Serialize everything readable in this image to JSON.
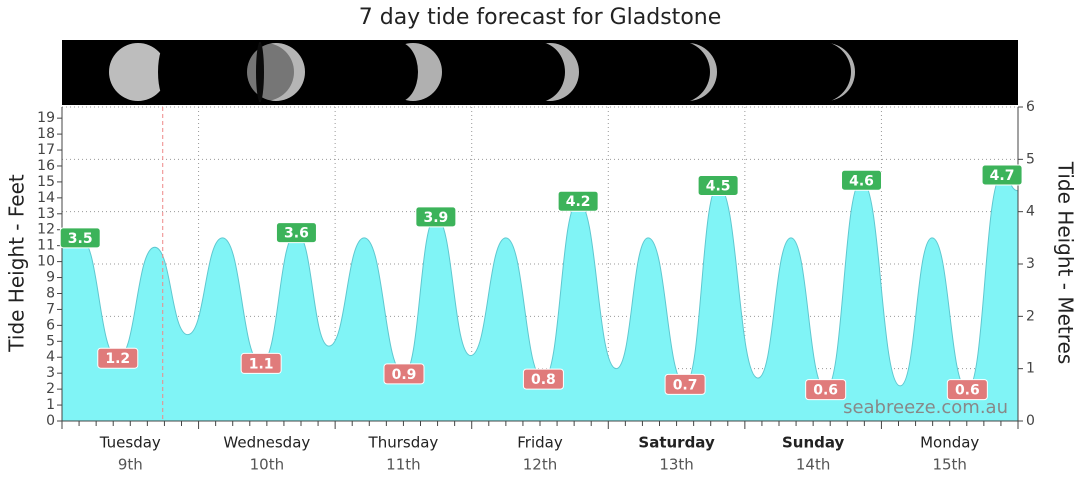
{
  "chart_data": {
    "type": "area",
    "title": "7 day tide forecast for Gladstone",
    "y_label": "Tide Height - Feet",
    "y2_label": "Tide Height - Metres",
    "watermark": "seabreeze.com.au",
    "xlim": [
      0,
      168
    ],
    "xticks": [
      0,
      24,
      48,
      72,
      96,
      120,
      144,
      168
    ],
    "xminorticks": [
      3,
      6,
      9,
      12,
      15,
      18,
      21,
      27,
      30,
      33,
      36,
      39,
      42,
      45,
      51,
      54,
      57,
      60,
      63,
      66,
      69,
      75,
      78,
      81,
      84,
      87,
      90,
      93,
      99,
      102,
      105,
      108,
      111,
      114,
      117,
      123,
      126,
      129,
      132,
      135,
      138,
      141,
      147,
      150,
      153,
      156,
      159,
      162,
      165
    ],
    "ylim": [
      0,
      19.7
    ],
    "yticks": [
      0,
      1,
      2,
      3,
      4,
      5,
      6,
      7,
      8,
      9,
      10,
      11,
      12,
      13,
      14,
      15,
      16,
      17,
      18,
      19
    ],
    "y2lim": [
      0,
      6
    ],
    "y2ticks": [
      0,
      1,
      2,
      3,
      4,
      5,
      6
    ],
    "grid": true,
    "current_time_x": 17.7,
    "days": [
      {
        "name": "Tuesday",
        "date": "9th"
      },
      {
        "name": "Wednesday",
        "date": "10th"
      },
      {
        "name": "Thursday",
        "date": "11th"
      },
      {
        "name": "Friday",
        "date": "12th"
      },
      {
        "name": "Saturday",
        "date": "13th",
        "bold": true
      },
      {
        "name": "Sunday",
        "date": "14th",
        "bold": true
      },
      {
        "name": "Monday",
        "date": "15th"
      }
    ],
    "series": [
      {
        "name": "Tide",
        "color": "#80f4f6",
        "axis": "y2",
        "x": [
          0,
          3.2,
          9.8,
          16.3,
          22.1,
          28.2,
          35.0,
          41.2,
          46.9,
          53.1,
          60.1,
          65.7,
          71.8,
          78.0,
          84.6,
          90.7,
          97.4,
          103.0,
          109.5,
          115.3,
          122.3,
          128.1,
          134.2,
          140.5,
          147.3,
          152.9,
          159.1,
          165.2,
          168
        ],
        "values": [
          3.34,
          3.5,
          1.2,
          3.32,
          1.65,
          3.5,
          1.1,
          3.6,
          1.43,
          3.5,
          0.9,
          3.9,
          1.25,
          3.5,
          0.8,
          4.2,
          1.0,
          3.5,
          0.7,
          4.5,
          0.82,
          3.5,
          0.6,
          4.6,
          0.67,
          3.5,
          0.6,
          4.7,
          4.4
        ]
      }
    ],
    "high_tides": {
      "color": "#3cb35a",
      "x": [
        3.2,
        41.2,
        65.7,
        90.7,
        115.3,
        140.5,
        165.2
      ],
      "values": [
        3.5,
        3.6,
        3.9,
        4.2,
        4.5,
        4.6,
        4.7
      ]
    },
    "low_tides": {
      "color": "#e07b7b",
      "x": [
        9.8,
        35.0,
        60.1,
        84.6,
        109.5,
        134.2,
        159.1
      ],
      "values": [
        1.2,
        1.1,
        0.9,
        0.8,
        0.7,
        0.6,
        0.6
      ]
    }
  }
}
